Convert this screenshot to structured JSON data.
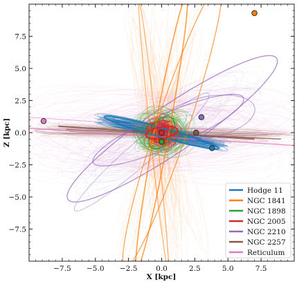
{
  "chart_data": {
    "type": "line",
    "xlabel": "X [kpc]",
    "ylabel": "Z [kpc]",
    "xlim": [
      -10,
      10
    ],
    "ylim": [
      -10,
      10
    ],
    "xticks": [
      -7.5,
      -5.0,
      -2.5,
      0.0,
      2.5,
      5.0,
      7.5
    ],
    "xtick_labels": [
      "−7.5",
      "−5.0",
      "−2.5",
      "0.0",
      "2.5",
      "5.0",
      "7.5"
    ],
    "yticks": [
      -7.5,
      -5.0,
      -2.5,
      0.0,
      2.5,
      5.0,
      7.5
    ],
    "ytick_labels": [
      "−7.5",
      "−5.0",
      "−2.5",
      "0.0",
      "2.5",
      "5.0",
      "7.5"
    ],
    "grid": false,
    "legend_position": "lower-right",
    "series": [
      {
        "name": "Hodge 11",
        "color": "#1f77b4",
        "current_position": [
          3.8,
          -1.2
        ]
      },
      {
        "name": "NGC 1841",
        "color": "#ff7f0e",
        "current_position": [
          7.0,
          9.3
        ]
      },
      {
        "name": "NGC 1898",
        "color": "#2ca02c",
        "current_position": [
          0.0,
          -0.7
        ]
      },
      {
        "name": "NGC 2005",
        "color": "#d62728",
        "current_position": [
          0.0,
          0.0
        ]
      },
      {
        "name": "NGC 2210",
        "color": "#9467bd",
        "current_position": [
          3.0,
          1.2
        ]
      },
      {
        "name": "NGC 2257",
        "color": "#8c564b",
        "current_position": [
          2.6,
          0.0
        ]
      },
      {
        "name": "Reticulum",
        "color": "#e377c2",
        "current_position": [
          -8.9,
          0.9
        ]
      }
    ]
  }
}
